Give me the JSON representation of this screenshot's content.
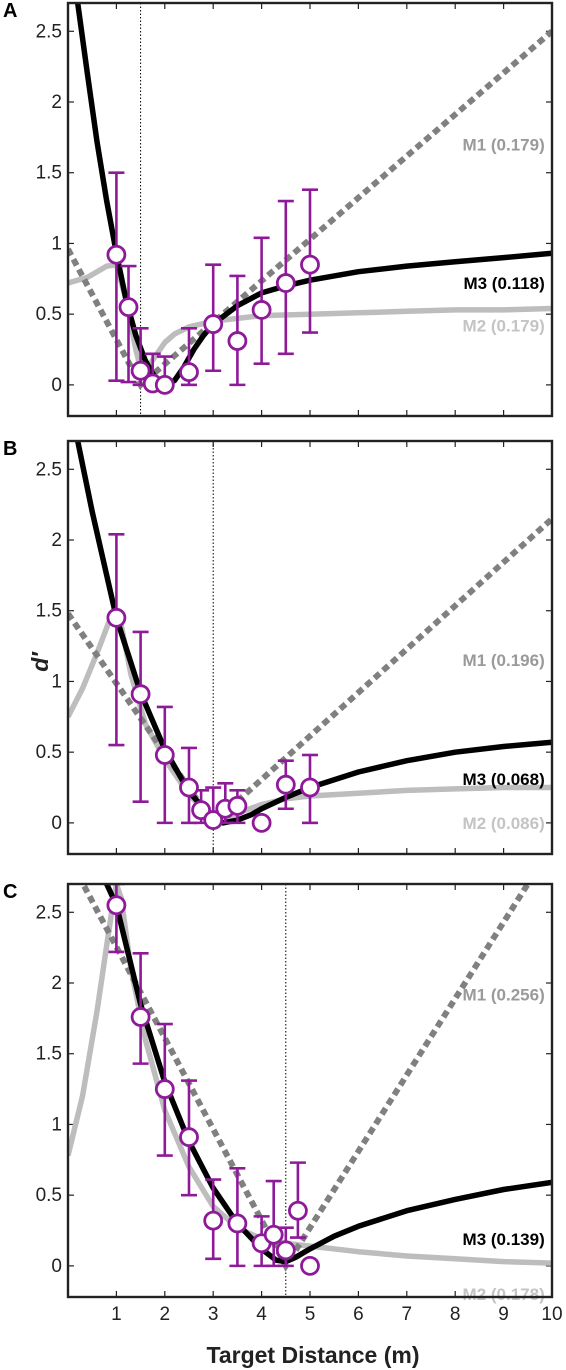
{
  "figure": {
    "xlabel": "Target Distance (m)",
    "ylabel": "d′"
  },
  "colors": {
    "M1": "#808080",
    "M2": "#bdbdbd",
    "M3": "#000000",
    "data": "#8e1a9a",
    "M1_label": "#9a9a9a",
    "M2_label": "#c4c4c4",
    "M3_label": "#000000"
  },
  "chart_data": [
    {
      "type": "line",
      "panel": "A",
      "xlim": [
        0,
        10
      ],
      "ylim": [
        -0.22,
        2.7
      ],
      "x_ticks": [
        1,
        2,
        3,
        4,
        5,
        6,
        7,
        8,
        9,
        10
      ],
      "y_ticks": [
        0,
        0.5,
        1,
        1.5,
        2,
        2.5
      ],
      "x_tick_labels": [],
      "y_tick_labels": [
        "0",
        "0.5",
        "1",
        "1.5",
        "2",
        "2.5"
      ],
      "reference_line_x": 1.5,
      "series": [
        {
          "id": "M1",
          "label": "M1 (0.179)",
          "label_at": [
            9.85,
            1.7
          ],
          "x": [
            0,
            1.5,
            10
          ],
          "y": [
            0.96,
            0.0,
            2.5
          ]
        },
        {
          "id": "M2",
          "label": "M2 (0.179)",
          "label_at": [
            9.85,
            0.42
          ],
          "x": [
            0,
            0.4,
            0.8,
            1.0,
            1.2,
            1.4,
            1.5,
            1.6,
            1.8,
            2.0,
            2.2,
            2.5,
            3.0,
            3.5,
            4.0,
            5.0,
            6.0,
            7.0,
            8.0,
            9.0,
            10.0
          ],
          "y": [
            0.72,
            0.76,
            0.84,
            0.85,
            0.6,
            0.25,
            0.12,
            0.1,
            0.2,
            0.3,
            0.36,
            0.41,
            0.45,
            0.47,
            0.49,
            0.5,
            0.51,
            0.52,
            0.53,
            0.53,
            0.54
          ]
        },
        {
          "id": "M3",
          "label": "M3 (0.118)",
          "label_at": [
            9.85,
            0.72
          ],
          "x": [
            0.2,
            0.4,
            0.6,
            0.8,
            1.0,
            1.2,
            1.4,
            1.6,
            1.8,
            2.0,
            2.2,
            2.4,
            2.6,
            2.8,
            3.0,
            3.5,
            4.0,
            4.5,
            5.0,
            6.0,
            7.0,
            8.0,
            9.0,
            10.0
          ],
          "y": [
            2.7,
            2.2,
            1.72,
            1.3,
            0.93,
            0.6,
            0.35,
            0.17,
            0.05,
            0.0,
            0.03,
            0.13,
            0.25,
            0.35,
            0.43,
            0.56,
            0.65,
            0.7,
            0.74,
            0.8,
            0.84,
            0.87,
            0.9,
            0.93
          ]
        },
        {
          "id": "data",
          "label": "",
          "x": [
            1.0,
            1.25,
            1.5,
            1.75,
            2.0,
            2.5,
            3.0,
            3.5,
            4.0,
            4.5,
            5.0
          ],
          "y": [
            0.92,
            0.55,
            0.1,
            0.01,
            0.0,
            0.09,
            0.43,
            0.31,
            0.53,
            0.72,
            0.85
          ],
          "y_low": [
            0.03,
            0.02,
            0.0,
            0.0,
            0.0,
            0.0,
            0.1,
            0.0,
            0.15,
            0.22,
            0.37
          ],
          "y_high": [
            1.5,
            0.84,
            0.4,
            0.22,
            0.2,
            0.4,
            0.85,
            0.77,
            1.04,
            1.3,
            1.38
          ]
        }
      ]
    },
    {
      "type": "line",
      "panel": "B",
      "xlim": [
        0,
        10
      ],
      "ylim": [
        -0.22,
        2.7
      ],
      "x_ticks": [
        1,
        2,
        3,
        4,
        5,
        6,
        7,
        8,
        9,
        10
      ],
      "y_ticks": [
        0,
        0.5,
        1,
        1.5,
        2,
        2.5
      ],
      "x_tick_labels": [],
      "y_tick_labels": [
        "0",
        "0.5",
        "1",
        "1.5",
        "2",
        "2.5"
      ],
      "reference_line_x": 3.0,
      "series": [
        {
          "id": "M1",
          "label": "M1 (0.196)",
          "label_at": [
            9.85,
            1.15
          ],
          "x": [
            0,
            3.0,
            10
          ],
          "y": [
            1.48,
            0.0,
            2.15
          ]
        },
        {
          "id": "M2",
          "label": "M2 (0.086)",
          "label_at": [
            9.85,
            0.0
          ],
          "x": [
            0,
            0.3,
            0.6,
            0.9,
            1.1,
            1.3,
            1.6,
            2.0,
            2.5,
            3.0,
            3.3,
            3.6,
            4.0,
            4.5,
            5.0,
            6.0,
            7.0,
            8.0,
            9.0,
            10.0
          ],
          "y": [
            0.75,
            0.95,
            1.2,
            1.47,
            1.4,
            1.05,
            0.7,
            0.45,
            0.2,
            0.02,
            0.04,
            0.08,
            0.13,
            0.17,
            0.19,
            0.21,
            0.23,
            0.24,
            0.25,
            0.25
          ]
        },
        {
          "id": "M3",
          "label": "M3 (0.068)",
          "label_at": [
            9.85,
            0.31
          ],
          "x": [
            0.2,
            0.5,
            1.0,
            1.5,
            2.0,
            2.5,
            3.0,
            3.2,
            3.5,
            3.8,
            4.0,
            4.5,
            5.0,
            6.0,
            7.0,
            8.0,
            9.0,
            10.0
          ],
          "y": [
            2.7,
            2.2,
            1.45,
            0.92,
            0.52,
            0.22,
            0.03,
            0.0,
            0.02,
            0.06,
            0.1,
            0.18,
            0.25,
            0.36,
            0.44,
            0.5,
            0.54,
            0.57
          ]
        },
        {
          "id": "data",
          "label": "",
          "x": [
            1.0,
            1.5,
            2.0,
            2.5,
            2.75,
            3.0,
            3.25,
            3.5,
            4.0,
            4.5,
            5.0
          ],
          "y": [
            1.45,
            0.91,
            0.48,
            0.25,
            0.09,
            0.02,
            0.1,
            0.12,
            0.0,
            0.27,
            0.25
          ],
          "y_low": [
            0.55,
            0.15,
            0.0,
            0.0,
            0.0,
            0.0,
            0.0,
            0.0,
            0.0,
            0.1,
            0.0
          ],
          "y_high": [
            2.04,
            1.35,
            0.82,
            0.53,
            0.23,
            0.25,
            0.28,
            0.23,
            0.03,
            0.44,
            0.48
          ]
        }
      ]
    },
    {
      "type": "line",
      "panel": "C",
      "xlim": [
        0,
        10
      ],
      "ylim": [
        -0.22,
        2.7
      ],
      "x_ticks": [
        1,
        2,
        3,
        4,
        5,
        6,
        7,
        8,
        9,
        10
      ],
      "y_ticks": [
        0,
        0.5,
        1,
        1.5,
        2,
        2.5
      ],
      "x_tick_labels": [
        "1",
        "2",
        "3",
        "4",
        "5",
        "6",
        "7",
        "8",
        "9",
        "10"
      ],
      "y_tick_labels": [
        "0",
        "0.5",
        "1",
        "1.5",
        "2",
        "2.5"
      ],
      "reference_line_x": 4.5,
      "series": [
        {
          "id": "M1",
          "label": "M1 (0.256)",
          "label_at": [
            9.85,
            1.92
          ],
          "x": [
            0,
            4.5,
            9.5
          ],
          "y": [
            2.9,
            0.0,
            2.7
          ]
        },
        {
          "id": "M2",
          "label": "M2 (0.178)",
          "label_at": [
            9.85,
            -0.2
          ],
          "x": [
            0,
            0.3,
            0.6,
            0.9,
            1.0,
            1.1,
            1.3,
            1.6,
            2.0,
            2.5,
            3.0,
            3.5,
            4.0,
            4.5,
            5.0,
            6.0,
            7.0,
            8.0,
            9.0,
            10.0
          ],
          "y": [
            0.78,
            1.2,
            1.8,
            2.5,
            2.7,
            2.6,
            2.1,
            1.6,
            1.1,
            0.7,
            0.42,
            0.27,
            0.19,
            0.16,
            0.14,
            0.1,
            0.07,
            0.05,
            0.03,
            0.02
          ]
        },
        {
          "id": "M3",
          "label": "M3 (0.139)",
          "label_at": [
            9.85,
            0.19
          ],
          "x": [
            0.8,
            1.0,
            1.5,
            2.0,
            2.5,
            3.0,
            3.5,
            4.0,
            4.3,
            4.5,
            4.7,
            5.0,
            5.5,
            6.0,
            7.0,
            8.0,
            9.0,
            10.0
          ],
          "y": [
            2.7,
            2.55,
            1.85,
            1.3,
            0.88,
            0.55,
            0.3,
            0.12,
            0.04,
            0.03,
            0.06,
            0.12,
            0.21,
            0.28,
            0.39,
            0.47,
            0.54,
            0.59
          ]
        },
        {
          "id": "data",
          "label": "",
          "x": [
            1.0,
            1.5,
            2.0,
            2.5,
            3.0,
            3.5,
            4.0,
            4.25,
            4.5,
            4.75,
            5.0
          ],
          "y": [
            2.55,
            1.76,
            1.25,
            0.91,
            0.32,
            0.3,
            0.16,
            0.22,
            0.11,
            0.39,
            0.0
          ],
          "y_low": [
            2.22,
            1.43,
            0.78,
            0.5,
            0.05,
            0.0,
            0.0,
            0.0,
            0.0,
            0.2,
            0.0
          ],
          "y_high": [
            2.7,
            2.21,
            1.71,
            1.31,
            0.61,
            0.69,
            0.35,
            0.6,
            0.27,
            0.73,
            0.0
          ]
        }
      ]
    }
  ]
}
